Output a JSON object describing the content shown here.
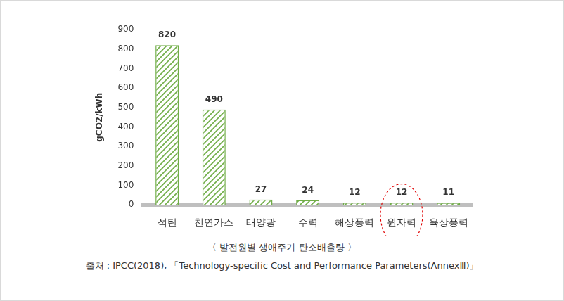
{
  "chart_data": {
    "type": "bar",
    "title": "〈 발전원별 생애주기 탄소배출량 〉",
    "source": "출처 : IPCC(2018), 「Technology-specific Cost and Performance Parameters(AnnexⅢ)」",
    "y_label": "gCO2/kWh",
    "categories": [
      "석탄",
      "천연가스",
      "태양광",
      "수력",
      "해상풍력",
      "원자력",
      "육상풍력"
    ],
    "values": [
      820,
      490,
      27,
      24,
      12,
      12,
      11
    ],
    "color": "#70ad47",
    "ylim": [
      0,
      900
    ],
    "yticks": [
      0,
      100,
      200,
      300,
      400,
      500,
      600,
      700,
      800,
      900
    ],
    "grid": false,
    "data_labels": true
  }
}
